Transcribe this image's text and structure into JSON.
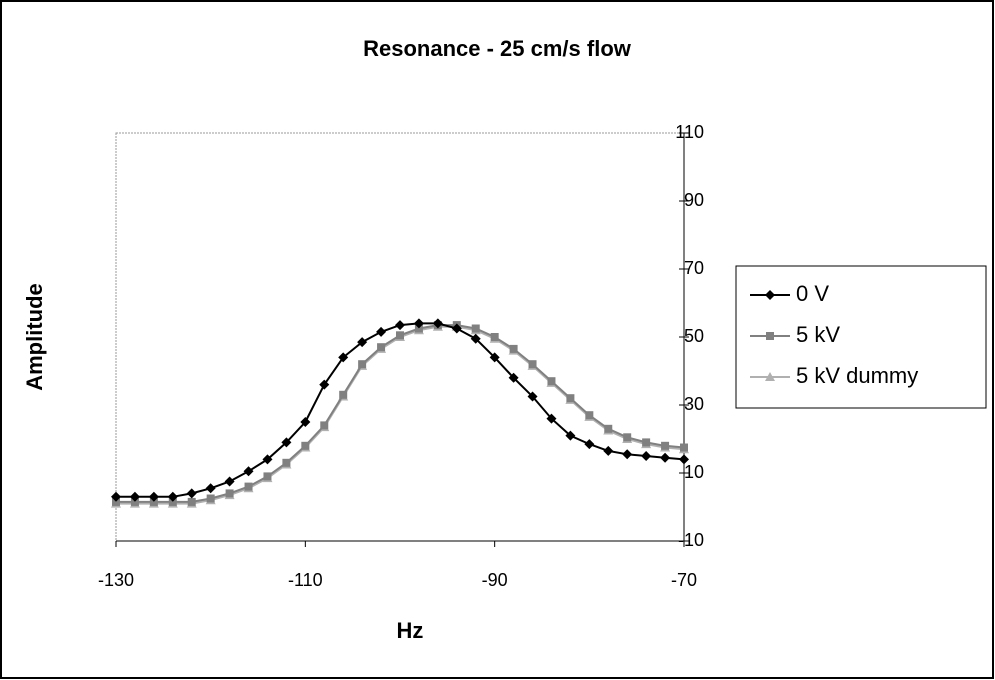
{
  "chart_data": {
    "type": "line",
    "title": "Resonance - 25 cm/s flow",
    "x_label": "Hz",
    "y_label": "Amplitude",
    "x": [
      -130,
      -128,
      -126,
      -124,
      -122,
      -120,
      -118,
      -116,
      -114,
      -112,
      -110,
      -108,
      -106,
      -104,
      -102,
      -100,
      -98,
      -96,
      -94,
      -92,
      -90,
      -88,
      -86,
      -84,
      -82,
      -80,
      -78,
      -76,
      -74,
      -72,
      -70
    ],
    "series": [
      {
        "name": "0 V",
        "color": "#000000",
        "marker": "diamond",
        "values": [
          3,
          3,
          3,
          3,
          4,
          5.5,
          7.5,
          10.5,
          14,
          19,
          25,
          36,
          44,
          48.5,
          51.5,
          53.5,
          54,
          54,
          52.5,
          49.5,
          44,
          38,
          32.5,
          26,
          21,
          18.5,
          16.5,
          15.5,
          15,
          14.5,
          14
        ]
      },
      {
        "name": "5 kV",
        "color": "#808080",
        "marker": "square",
        "values": [
          1.5,
          1.5,
          1.5,
          1.5,
          1.5,
          2.5,
          4,
          6,
          9,
          13,
          18,
          24,
          33,
          42,
          47,
          50.5,
          52.5,
          53.5,
          53.5,
          52.5,
          50,
          46.5,
          42,
          37,
          32,
          27,
          23,
          20.5,
          19,
          18,
          17.5
        ]
      },
      {
        "name": "5 kV dummy",
        "color": "#b0b0b0",
        "marker": "triangle",
        "values": [
          1,
          1,
          1,
          1,
          1,
          2,
          3.5,
          5.5,
          8.5,
          12.5,
          17.5,
          23.5,
          32.5,
          41.5,
          46.5,
          50,
          52,
          53,
          53,
          52,
          49.5,
          46,
          41.5,
          36.5,
          31.5,
          26.5,
          22.5,
          20,
          18.5,
          17.5,
          17
        ]
      }
    ],
    "xlim": [
      -130,
      -70
    ],
    "xticks": [
      -130,
      -110,
      -90,
      -70
    ],
    "ylim": [
      -10,
      110
    ],
    "yticks": [
      -10,
      10,
      30,
      50,
      70,
      90,
      110
    ],
    "legend": "right"
  }
}
